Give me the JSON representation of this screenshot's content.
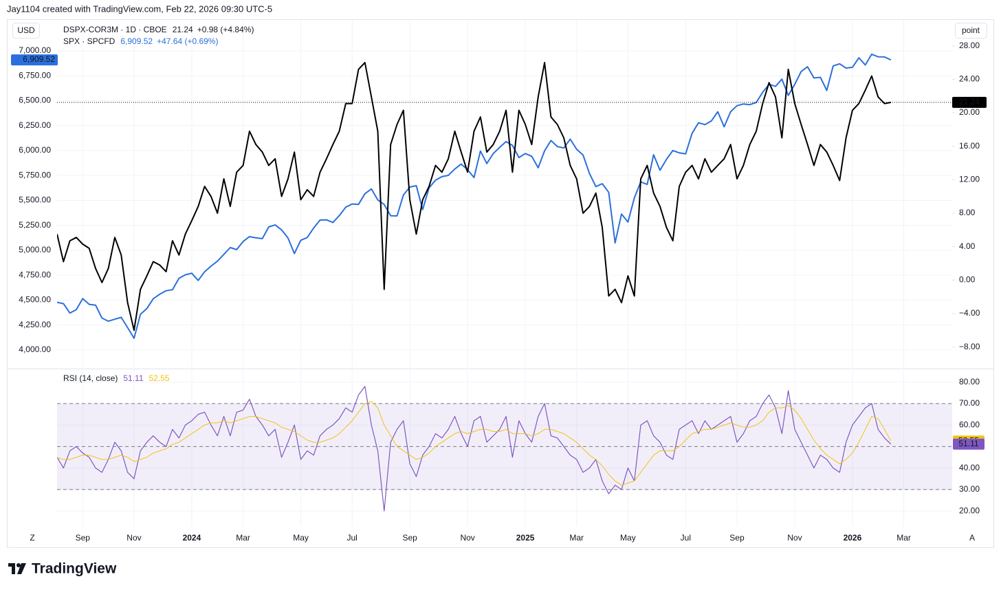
{
  "header": "Jay1104 created with TradingView.com, Feb 22, 2026 09:30 UTC-5",
  "footer": {
    "brand": "TradingView"
  },
  "axis_buttons": [
    "Z",
    "A"
  ],
  "chart_data": [
    {
      "type": "line",
      "y_unit": "USD",
      "y2_unit": "point",
      "categories": [
        null,
        null,
        null,
        null,
        "Sep",
        null,
        null,
        null,
        null,
        null,
        null,
        null,
        "Nov",
        null,
        null,
        null,
        null,
        null,
        null,
        null,
        null,
        "2024",
        null,
        null,
        null,
        null,
        null,
        null,
        null,
        "Mar",
        null,
        null,
        null,
        null,
        null,
        null,
        null,
        null,
        "May",
        null,
        null,
        null,
        null,
        null,
        null,
        null,
        "Jul",
        null,
        null,
        null,
        null,
        null,
        null,
        null,
        null,
        "Sep",
        null,
        null,
        null,
        null,
        null,
        null,
        null,
        null,
        "Nov",
        null,
        null,
        null,
        null,
        null,
        null,
        null,
        null,
        "2025",
        null,
        null,
        null,
        null,
        null,
        null,
        null,
        "Mar",
        null,
        null,
        null,
        null,
        null,
        null,
        null,
        "May",
        null,
        null,
        null,
        null,
        null,
        null,
        null,
        null,
        "Jul",
        null,
        null,
        null,
        null,
        null,
        null,
        null,
        "Sep",
        null,
        null,
        null,
        null,
        null,
        null,
        null,
        null,
        "Nov",
        null,
        null,
        null,
        null,
        null,
        null,
        null,
        null,
        "2026",
        null,
        null,
        null,
        null,
        null,
        null,
        null,
        "Mar"
      ],
      "series": [
        {
          "name": "DSPX-COR3M · 1D · CBOE",
          "color": "#000000",
          "axis": "y2",
          "change_label": "+0.98 (+4.84%)",
          "values": [
            5.5,
            2.2,
            4.7,
            5.1,
            4.3,
            3.8,
            1.4,
            -0.3,
            1.4,
            5.1,
            3.0,
            -2.7,
            -6.0,
            -1.1,
            0.5,
            2.2,
            1.8,
            1.0,
            4.7,
            3.0,
            5.5,
            7.1,
            8.8,
            11.2,
            10.0,
            8.0,
            12.1,
            8.8,
            12.9,
            13.7,
            17.8,
            16.2,
            15.3,
            13.7,
            14.5,
            10.0,
            12.1,
            15.3,
            9.6,
            10.8,
            10.0,
            12.9,
            14.5,
            16.2,
            17.8,
            21.1,
            21.1,
            25.2,
            26.0,
            21.9,
            17.8,
            -1.1,
            16.2,
            18.6,
            20.3,
            9.6,
            5.5,
            9.6,
            11.2,
            13.7,
            12.9,
            14.5,
            17.8,
            15.3,
            12.9,
            17.8,
            19.5,
            15.3,
            16.2,
            17.8,
            20.3,
            12.9,
            20.3,
            18.6,
            16.2,
            21.9,
            26.0,
            19.5,
            18.6,
            17.0,
            13.7,
            12.1,
            8.0,
            8.8,
            10.4,
            6.3,
            -1.9,
            -1.1,
            -2.7,
            0.5,
            -1.9,
            12.1,
            13.7,
            10.4,
            8.8,
            6.3,
            4.7,
            11.2,
            12.9,
            13.7,
            12.1,
            14.5,
            12.9,
            13.7,
            14.5,
            16.2,
            12.1,
            13.7,
            16.2,
            17.8,
            21.1,
            23.6,
            21.9,
            17.0,
            25.2,
            21.1,
            18.6,
            16.2,
            13.7,
            16.2,
            15.3,
            13.7,
            11.9,
            17.0,
            20.3,
            21.1,
            22.7,
            24.4,
            21.9,
            21.1,
            21.24,
            null,
            null
          ]
        },
        {
          "name": "SPX · SPCFD",
          "color": "#2b6fdc",
          "change_label": "+47.64 (+0.69%)",
          "values": [
            4478,
            4464,
            4370,
            4405,
            4515,
            4457,
            4450,
            4320,
            4288,
            4308,
            4327,
            4224,
            4117,
            4358,
            4415,
            4514,
            4559,
            4594,
            4604,
            4719,
            4754,
            4770,
            4697,
            4784,
            4840,
            4891,
            4959,
            5027,
            5006,
            5088,
            5137,
            5124,
            5117,
            5234,
            5254,
            5204,
            5123,
            4967,
            5100,
            5128,
            5223,
            5303,
            5305,
            5278,
            5347,
            5432,
            5464,
            5460,
            5567,
            5615,
            5505,
            5459,
            5346,
            5344,
            5554,
            5634,
            5648,
            5408,
            5626,
            5703,
            5738,
            5751,
            5815,
            5864,
            5808,
            5729,
            5995,
            5870,
            5969,
            6032,
            6090,
            6051,
            5930,
            5970,
            5942,
            5827,
            5997,
            6101,
            6040,
            6026,
            6115,
            6013,
            5955,
            5770,
            5639,
            5668,
            5581,
            5074,
            5363,
            5283,
            5525,
            5686,
            5660,
            5958,
            5802,
            5912,
            6000,
            5977,
            5967,
            6173,
            6279,
            6260,
            6297,
            6389,
            6238,
            6389,
            6450,
            6467,
            6460,
            6482,
            6584,
            6664,
            6644,
            6716,
            6553,
            6664,
            6792,
            6840,
            6728,
            6734,
            6603,
            6849,
            6870,
            6827,
            6835,
            6930,
            6858,
            6966,
            6940,
            6939,
            6909.52,
            null,
            null
          ],
          "value_labels": [
            null,
            null,
            null,
            null,
            null,
            null,
            null,
            null,
            null,
            null,
            null,
            null,
            null,
            null,
            null,
            null,
            null,
            null,
            null,
            null,
            null,
            null,
            null,
            null,
            null,
            null,
            null,
            null,
            null,
            null,
            null,
            null,
            null,
            null,
            null,
            null,
            null,
            null,
            null,
            null,
            null,
            null,
            null,
            null,
            null,
            null,
            null,
            null,
            null,
            null,
            null,
            null,
            null,
            null,
            null,
            null,
            null,
            null,
            null,
            null,
            null,
            null,
            null,
            null,
            null,
            null,
            null,
            null,
            null,
            null,
            null,
            null,
            null,
            null,
            null,
            null,
            null,
            null,
            null,
            null,
            null,
            null,
            null,
            null,
            null,
            null,
            null,
            null,
            null,
            null,
            null,
            null,
            null,
            null,
            null,
            null,
            null,
            null,
            null,
            null,
            null,
            null,
            null,
            null,
            null,
            null,
            null,
            null,
            null,
            null,
            null,
            null,
            null,
            null,
            null,
            null,
            null,
            null,
            null,
            null,
            null,
            null,
            null,
            null,
            null,
            null,
            null,
            null,
            null,
            null,
            "6,909.52",
            null,
            null
          ]
        }
      ],
      "ylim": [
        3820,
        7310
      ],
      "yticks": [
        {
          "value": 4000,
          "label": "4,000.00"
        },
        {
          "value": 4250,
          "label": "4,250.00"
        },
        {
          "value": 4500,
          "label": "4,500.00"
        },
        {
          "value": 4750,
          "label": "4,750.00"
        },
        {
          "value": 5000,
          "label": "5,000.00"
        },
        {
          "value": 5250,
          "label": "5,250.00"
        },
        {
          "value": 5500,
          "label": "5,500.00"
        },
        {
          "value": 5750,
          "label": "5,750.00"
        },
        {
          "value": 6000,
          "label": "6,000.00"
        },
        {
          "value": 6250,
          "label": "6,250.00"
        },
        {
          "value": 6500,
          "label": "6,500.00"
        },
        {
          "value": 6750,
          "label": "6,750.00"
        },
        {
          "value": 7000,
          "label": "7,000.00"
        }
      ],
      "y2lim": [
        -10.5,
        31.1
      ],
      "y2ticks": [
        {
          "value": -8,
          "label": "−8.00"
        },
        {
          "value": -4,
          "label": "−4.00"
        },
        {
          "value": 0,
          "label": "0.00"
        },
        {
          "value": 4,
          "label": "4.00"
        },
        {
          "value": 8,
          "label": "8.00"
        },
        {
          "value": 12,
          "label": "12.00"
        },
        {
          "value": 16,
          "label": "16.00"
        },
        {
          "value": 20,
          "label": "20.00"
        },
        {
          "value": 24,
          "label": "24.00"
        },
        {
          "value": 28,
          "label": "28.00"
        }
      ],
      "grid": true
    },
    {
      "type": "line",
      "title": "RSI (14, close)",
      "series": [
        {
          "color": "#7e57c2",
          "values": [
            45,
            40,
            48,
            50,
            47,
            45,
            40,
            38,
            44,
            52,
            48,
            38,
            35,
            48,
            52,
            55,
            52,
            50,
            58,
            54,
            60,
            62,
            65,
            66,
            60,
            55,
            64,
            55,
            66,
            67,
            72,
            64,
            60,
            55,
            58,
            45,
            52,
            60,
            44,
            48,
            46,
            55,
            58,
            60,
            63,
            68,
            66,
            74,
            78,
            60,
            48,
            20,
            52,
            58,
            62,
            42,
            36,
            46,
            50,
            56,
            54,
            58,
            64,
            56,
            50,
            62,
            64,
            52,
            55,
            58,
            64,
            45,
            62,
            56,
            52,
            64,
            70,
            55,
            54,
            50,
            46,
            44,
            38,
            40,
            44,
            34,
            28,
            32,
            30,
            40,
            34,
            60,
            62,
            55,
            52,
            46,
            44,
            58,
            60,
            62,
            56,
            62,
            58,
            60,
            62,
            64,
            52,
            56,
            62,
            64,
            70,
            74,
            68,
            56,
            76,
            58,
            52,
            46,
            40,
            46,
            44,
            40,
            38,
            52,
            60,
            64,
            68,
            70,
            58,
            54,
            51.11,
            null,
            null
          ]
        },
        {
          "color": "#f2c314",
          "values": [
            45,
            44,
            44,
            45,
            46,
            46,
            45,
            44,
            44,
            45,
            46,
            45,
            43,
            44,
            45,
            47,
            48,
            49,
            51,
            52,
            54,
            56,
            58,
            60,
            61,
            61,
            62,
            61,
            62,
            63,
            64,
            64,
            63,
            62,
            61,
            59,
            58,
            57,
            55,
            53,
            52,
            52,
            53,
            54,
            56,
            59,
            62,
            66,
            70,
            71,
            68,
            60,
            55,
            50,
            48,
            46,
            44,
            45,
            47,
            50,
            52,
            54,
            56,
            57,
            56,
            57,
            58,
            58,
            57,
            57,
            58,
            56,
            56,
            56,
            55,
            56,
            58,
            58,
            57,
            56,
            54,
            52,
            49,
            46,
            44,
            41,
            37,
            34,
            32,
            33,
            34,
            38,
            42,
            46,
            48,
            48,
            48,
            50,
            53,
            56,
            57,
            58,
            58,
            59,
            60,
            61,
            60,
            59,
            59,
            60,
            62,
            66,
            68,
            68,
            69,
            67,
            63,
            58,
            53,
            49,
            46,
            44,
            42,
            44,
            47,
            52,
            58,
            64,
            63,
            58,
            52.55,
            null,
            null
          ]
        }
      ],
      "ylim": [
        13,
        85
      ],
      "yticks": [
        {
          "value": 20,
          "label": "20.00"
        },
        {
          "value": 30,
          "label": "30.00"
        },
        {
          "value": 40,
          "label": "40.00"
        },
        {
          "value": 60,
          "label": "60.00"
        },
        {
          "value": 70,
          "label": "70.00"
        },
        {
          "value": 80,
          "label": "80.00"
        }
      ],
      "levels": [
        70,
        50,
        30
      ],
      "grid": true
    }
  ]
}
